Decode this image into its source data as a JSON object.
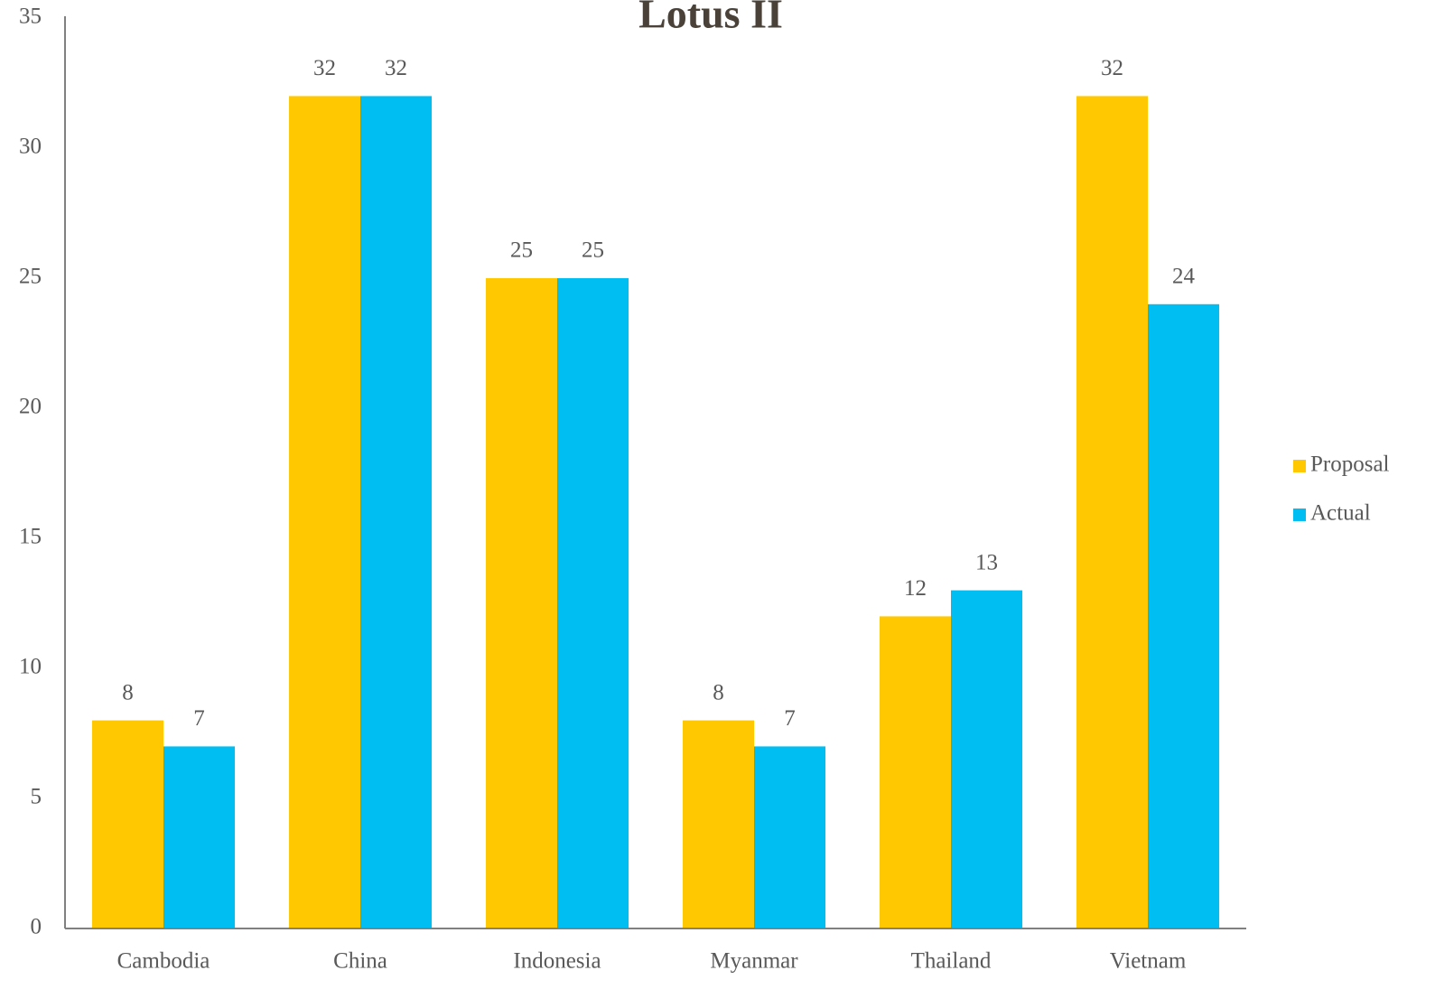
{
  "chart_data": {
    "type": "bar",
    "title": "Lotus II",
    "categories": [
      "Cambodia",
      "China",
      "Indonesia",
      "Myanmar",
      "Thailand",
      "Vietnam"
    ],
    "series": [
      {
        "name": "Proposal",
        "color": "#ffc800",
        "values": [
          8,
          32,
          25,
          8,
          12,
          32
        ]
      },
      {
        "name": "Actual",
        "color": "#00bef2",
        "values": [
          7,
          32,
          25,
          7,
          13,
          24
        ]
      }
    ],
    "ylim": [
      0,
      35
    ],
    "yticks": [
      0,
      5,
      10,
      15,
      20,
      25,
      30,
      35
    ],
    "grid": false,
    "legend": "right",
    "data_labels": true
  }
}
